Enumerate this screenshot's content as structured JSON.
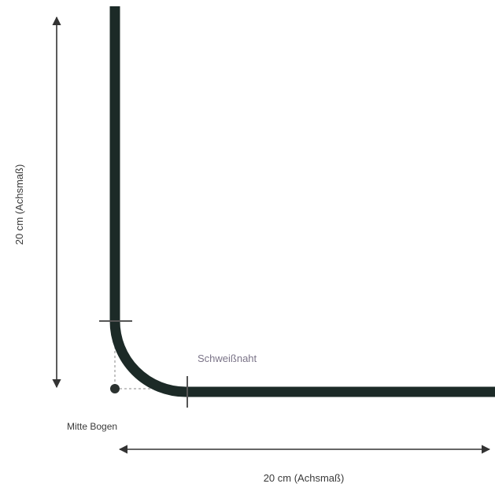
{
  "labels": {
    "vertical_dimension": "20 cm (Achsmaß)",
    "horizontal_dimension": "20 cm (Achsmaß)",
    "weld_seam": "Schweißnaht",
    "bend_center": "Mitte Bogen"
  },
  "colors": {
    "pipe": "#1c2a27",
    "dimension_line": "#333333",
    "weld_mark": "#555555",
    "guide_dash": "#8a8a8a",
    "label_text": "#3a3a3a",
    "weld_label_text": "#7b7488"
  }
}
